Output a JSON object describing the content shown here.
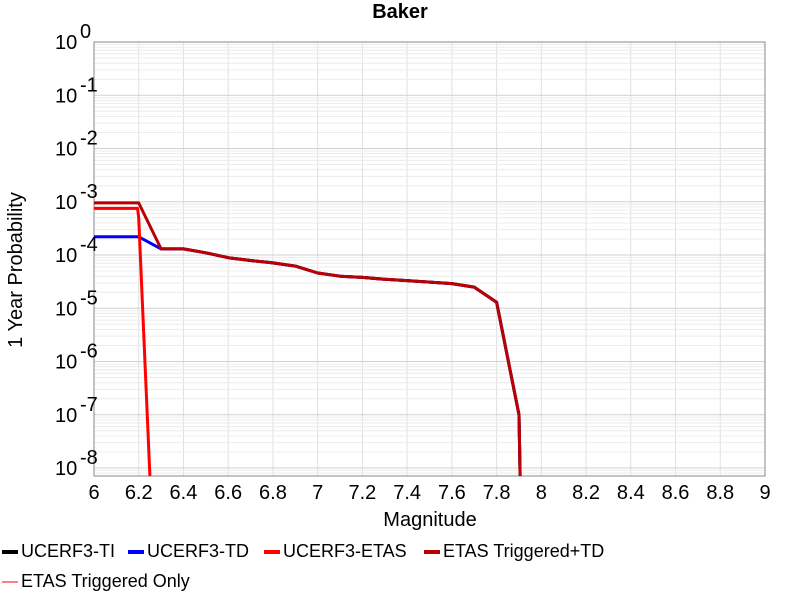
{
  "chart_data": {
    "type": "line",
    "title": "Baker",
    "xlabel": "Magnitude",
    "ylabel": "1 Year Probability",
    "xlim": [
      6,
      9
    ],
    "ylim_exponent": [
      -8.15,
      0
    ],
    "y_scale": "log",
    "grid": true,
    "legend_position": "bottom",
    "x_ticks": [
      "6",
      "6.2",
      "6.4",
      "6.6",
      "6.8",
      "7",
      "7.2",
      "7.4",
      "7.6",
      "7.8",
      "8",
      "8.2",
      "8.4",
      "8.6",
      "8.8",
      "9"
    ],
    "y_ticks": [
      {
        "base": "10",
        "exp": "0",
        "value": 1
      },
      {
        "base": "10",
        "exp": "-1",
        "value": 0.1
      },
      {
        "base": "10",
        "exp": "-2",
        "value": 0.01
      },
      {
        "base": "10",
        "exp": "-3",
        "value": 0.001
      },
      {
        "base": "10",
        "exp": "-4",
        "value": 0.0001
      },
      {
        "base": "10",
        "exp": "-5",
        "value": 1e-05
      },
      {
        "base": "10",
        "exp": "-6",
        "value": 1e-06
      },
      {
        "base": "10",
        "exp": "-7",
        "value": 1e-07
      },
      {
        "base": "10",
        "exp": "-8",
        "value": 1e-08
      }
    ],
    "series": [
      {
        "name": "UCERF3-TI",
        "color": "#000000",
        "width": 3,
        "x": [
          6.3,
          6.4,
          6.5,
          6.6,
          6.7,
          6.8,
          6.9,
          7.0,
          7.1,
          7.2,
          7.3,
          7.4,
          7.5,
          7.6,
          7.7,
          7.8,
          7.9,
          7.905
        ],
        "y": [
          0.00013,
          0.00013,
          0.00011,
          8.9e-05,
          7.9e-05,
          7.1e-05,
          6.2e-05,
          4.6e-05,
          4e-05,
          3.8e-05,
          3.5e-05,
          3.3e-05,
          3.1e-05,
          2.9e-05,
          2.5e-05,
          1.3e-05,
          1e-07,
          7e-09
        ]
      },
      {
        "name": "UCERF3-TD",
        "color": "#0000ff",
        "width": 3,
        "x": [
          6.0,
          6.2,
          6.3,
          6.4,
          6.5,
          6.6,
          6.7,
          6.8,
          6.9,
          7.0,
          7.1,
          7.2,
          7.3,
          7.4,
          7.5,
          7.6,
          7.7,
          7.8,
          7.9,
          7.905
        ],
        "y": [
          0.00022,
          0.00022,
          0.00013,
          0.00013,
          0.00011,
          8.9e-05,
          7.9e-05,
          7.1e-05,
          6.2e-05,
          4.6e-05,
          4e-05,
          3.8e-05,
          3.5e-05,
          3.3e-05,
          3.1e-05,
          2.9e-05,
          2.5e-05,
          1.3e-05,
          1e-07,
          7e-09
        ]
      },
      {
        "name": "UCERF3-ETAS",
        "color": "#ff0000",
        "width": 3,
        "x": [
          6.0,
          6.195,
          6.2,
          6.25
        ],
        "y": [
          0.00075,
          0.00075,
          0.0005,
          7e-09
        ]
      },
      {
        "name": "ETAS Triggered+TD",
        "color": "#bb0000",
        "width": 3,
        "x": [
          6.0,
          6.2,
          6.3,
          6.4,
          6.5,
          6.6,
          6.7,
          6.8,
          6.9,
          7.0,
          7.1,
          7.2,
          7.3,
          7.4,
          7.5,
          7.6,
          7.7,
          7.8,
          7.9,
          7.905
        ],
        "y": [
          0.00095,
          0.00095,
          0.00013,
          0.00013,
          0.00011,
          8.9e-05,
          7.9e-05,
          7.1e-05,
          6.2e-05,
          4.6e-05,
          4e-05,
          3.8e-05,
          3.5e-05,
          3.3e-05,
          3.1e-05,
          2.9e-05,
          2.5e-05,
          1.3e-05,
          1e-07,
          7e-09
        ]
      },
      {
        "name": "ETAS Triggered Only",
        "color": "#ff8080",
        "width": 1.5,
        "x": [],
        "y": []
      }
    ]
  }
}
